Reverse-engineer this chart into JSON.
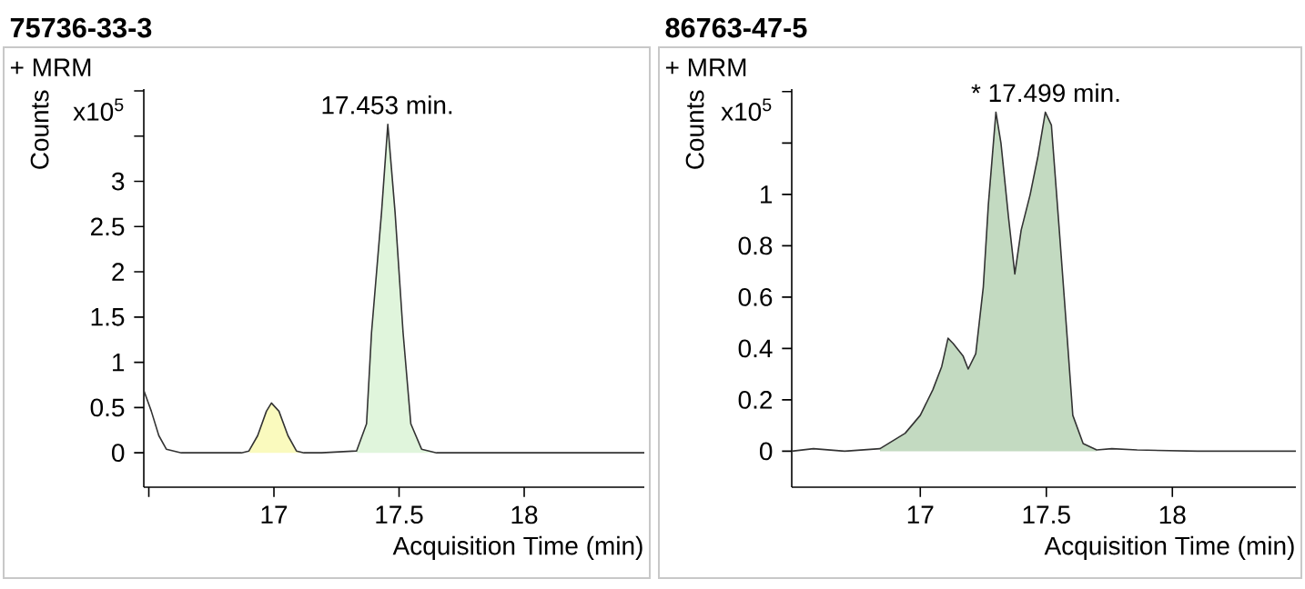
{
  "chart_data": [
    {
      "type": "line",
      "title": "75736-33-3",
      "xlabel": "Acquisition Time (min)",
      "ylabel": "Counts",
      "annotations": [
        "+ MRM",
        "x10$^{5}$",
        {
          "text": "17.453 min.",
          "x": 17.453,
          "y": 3.63
        }
      ],
      "xlim": [
        16.48,
        18.48
      ],
      "ylim": [
        -0.38,
        4.02
      ],
      "xticks": [
        {
          "value": 16.5,
          "label": null
        },
        17,
        17.5,
        18
      ],
      "yticks": [
        0,
        0.5,
        1,
        1.5,
        2,
        2.5,
        3,
        {
          "value": 3.5,
          "label": null
        },
        {
          "value": 4,
          "label": null
        }
      ],
      "marker": "none",
      "line_style": "solid",
      "series": [
        {
          "type": "area",
          "color": "#fafabe",
          "x": [
            16.9,
            16.935,
            16.97,
            16.99,
            17.02,
            17.056,
            17.09,
            17.12
          ],
          "values": [
            0.02,
            0.19,
            0.46,
            0.55,
            0.46,
            0.19,
            0.02,
            0
          ]
        },
        {
          "type": "area",
          "color": "#e0f5dc",
          "x": [
            17.33,
            17.37,
            17.39,
            17.43,
            17.455,
            17.484,
            17.516,
            17.547,
            17.59,
            17.65
          ],
          "values": [
            0.02,
            0.32,
            1.33,
            2.66,
            3.63,
            2.66,
            1.33,
            0.32,
            0.04,
            0
          ]
        },
        {
          "type": "line",
          "color": "#333333",
          "x": [
            16.48,
            16.51,
            16.54,
            16.57,
            16.63,
            16.87,
            16.9,
            16.935,
            16.97,
            16.99,
            17.02,
            17.056,
            17.09,
            17.12,
            17.19,
            17.33,
            17.37,
            17.39,
            17.43,
            17.455,
            17.484,
            17.516,
            17.547,
            17.59,
            17.65,
            18.48
          ],
          "values": [
            0.69,
            0.46,
            0.19,
            0.04,
            0,
            0,
            0.02,
            0.19,
            0.46,
            0.55,
            0.46,
            0.19,
            0.02,
            0,
            0,
            0.02,
            0.32,
            1.33,
            2.66,
            3.63,
            2.66,
            1.33,
            0.32,
            0.04,
            0,
            0
          ]
        }
      ]
    },
    {
      "type": "line",
      "title": "86763-47-5",
      "xlabel": "Acquisition Time (min)",
      "ylabel": "Counts",
      "annotations": [
        "+ MRM",
        "x10$^{5}$",
        {
          "text": "* 17.499 min.",
          "x": 17.499,
          "y": 1.32
        }
      ],
      "xlim": [
        16.49,
        18.49
      ],
      "ylim": [
        -0.14,
        1.41
      ],
      "xticks": [
        17,
        17.5,
        18
      ],
      "yticks": [
        0,
        0.2,
        0.4,
        0.6,
        0.8,
        1,
        {
          "value": 1.2,
          "label": null
        },
        {
          "value": 1.4,
          "label": null
        }
      ],
      "marker": "none",
      "line_style": "solid",
      "series": [
        {
          "type": "area",
          "color": "#c3dac1",
          "x": [
            16.84,
            16.94,
            17.0,
            17.05,
            17.085,
            17.11,
            17.13,
            17.17,
            17.19,
            17.22,
            17.25,
            17.27,
            17.3,
            17.32,
            17.35,
            17.375,
            17.4,
            17.436,
            17.467,
            17.496,
            17.52,
            17.55,
            17.58,
            17.605,
            17.646,
            17.7
          ],
          "values": [
            0.01,
            0.07,
            0.14,
            0.24,
            0.33,
            0.44,
            0.42,
            0.37,
            0.32,
            0.38,
            0.64,
            0.96,
            1.32,
            1.2,
            0.91,
            0.69,
            0.86,
            1.0,
            1.15,
            1.32,
            1.27,
            0.88,
            0.48,
            0.14,
            0.03,
            0.005
          ]
        },
        {
          "type": "line",
          "color": "#333333",
          "x": [
            16.49,
            16.576,
            16.7,
            16.84,
            16.94,
            17.0,
            17.05,
            17.085,
            17.11,
            17.13,
            17.17,
            17.19,
            17.22,
            17.25,
            17.27,
            17.3,
            17.32,
            17.35,
            17.375,
            17.4,
            17.436,
            17.467,
            17.496,
            17.52,
            17.55,
            17.58,
            17.605,
            17.646,
            17.7,
            17.76,
            17.86,
            18.1,
            18.49
          ],
          "values": [
            0,
            0.01,
            0,
            0.01,
            0.07,
            0.14,
            0.24,
            0.33,
            0.44,
            0.42,
            0.37,
            0.32,
            0.38,
            0.64,
            0.96,
            1.32,
            1.2,
            0.91,
            0.69,
            0.86,
            1.0,
            1.15,
            1.32,
            1.27,
            0.88,
            0.48,
            0.14,
            0.03,
            0.005,
            0.01,
            0.005,
            0,
            0
          ]
        }
      ]
    }
  ]
}
